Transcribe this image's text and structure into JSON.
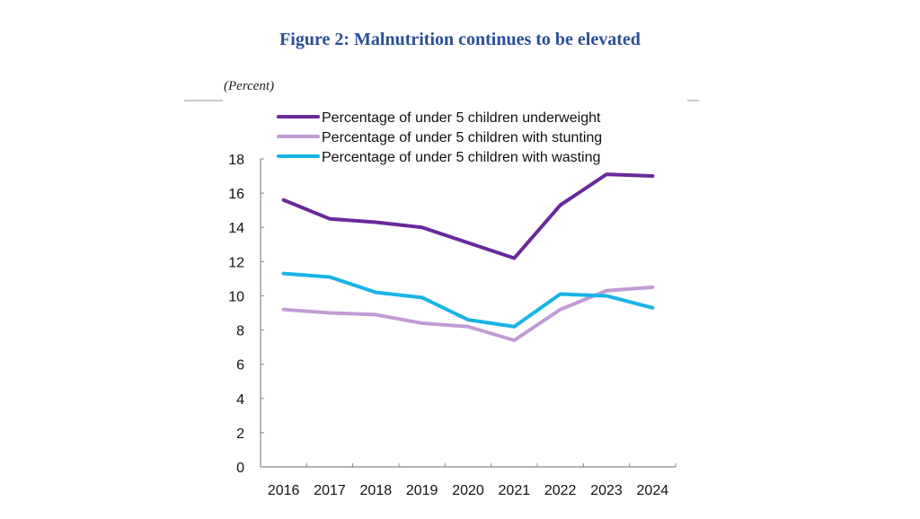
{
  "chart_data": {
    "type": "line",
    "title": "Figure 2: Malnutrition continues to be elevated",
    "ylabel": "(Percent)",
    "xlabel": "",
    "categories": [
      "2016",
      "2017",
      "2018",
      "2019",
      "2020",
      "2021",
      "2022",
      "2023",
      "2024"
    ],
    "ylim": [
      0,
      18
    ],
    "yticks": [
      0,
      2,
      4,
      6,
      8,
      10,
      12,
      14,
      16,
      18
    ],
    "grid": false,
    "legend_placement": "top",
    "series": [
      {
        "name": "Percentage of under 5 children underweight",
        "color": "#6a2a9a",
        "values": [
          15.6,
          14.5,
          14.3,
          14.0,
          13.1,
          12.2,
          15.3,
          17.1,
          17.0
        ]
      },
      {
        "name": "Percentage of under 5 children with stunting",
        "color": "#c29bd6",
        "values": [
          9.2,
          9.0,
          8.9,
          8.4,
          8.2,
          7.4,
          9.2,
          10.3,
          10.5
        ]
      },
      {
        "name": "Percentage of under 5 children with wasting",
        "color": "#19b3e6",
        "values": [
          11.3,
          11.1,
          10.2,
          9.9,
          8.6,
          8.2,
          10.1,
          10.0,
          9.3
        ]
      }
    ]
  }
}
